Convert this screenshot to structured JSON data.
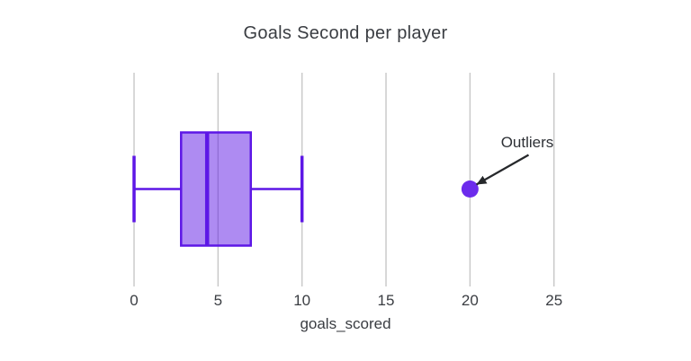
{
  "chart_data": {
    "type": "box",
    "orientation": "horizontal",
    "title": "Goals Second per player",
    "xlabel": "goals_scored",
    "x_axis": {
      "min": 0,
      "max": 25,
      "ticks": [
        0,
        5,
        10,
        15,
        20,
        25
      ],
      "grid": true
    },
    "series": [
      {
        "name": "goals_scored",
        "stats": {
          "whisker_low": 0,
          "q1": 2.8,
          "median": 4.35,
          "q3": 6.95,
          "whisker_high": 10
        },
        "outliers": [
          20
        ]
      }
    ],
    "annotation": {
      "text": "Outliers",
      "points_to_value": 20
    },
    "legend": "none",
    "colors": {
      "box_line": "#5d17e6",
      "box_fill": "#5d17e6",
      "box_fill_opacity": 0.5,
      "outlier_marker": "#6c2bec",
      "gridline": "#c7c7c7",
      "text": "#3a3d42",
      "arrow": "#26282b",
      "background": "#ffffff"
    }
  }
}
